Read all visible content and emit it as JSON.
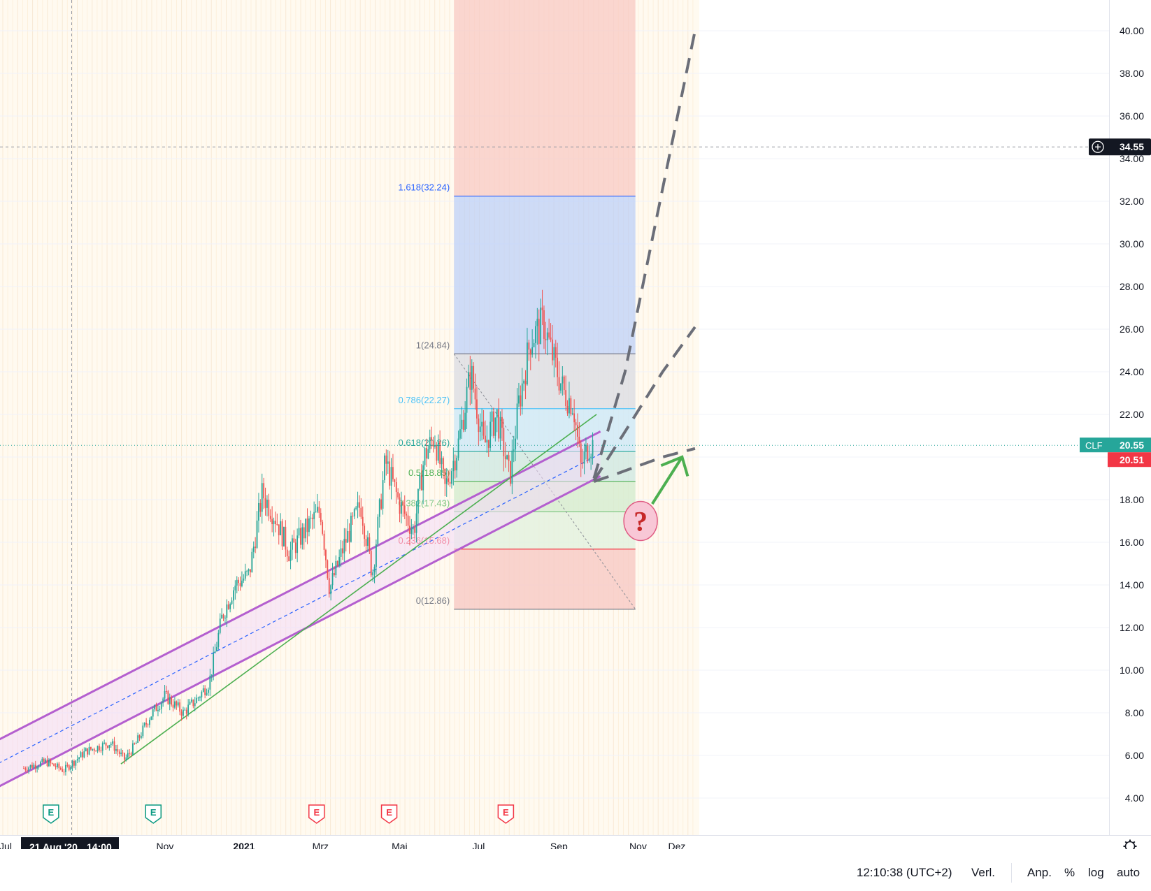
{
  "chart_data": {
    "type": "candlestick",
    "symbol": "CLF",
    "last_price": "20.55",
    "prev_price": "20.51",
    "crosshair_price": "34.55",
    "crosshair_date": "21 Aug '20",
    "crosshair_time": "14:00",
    "y_ticks": [
      "40.00",
      "38.00",
      "36.00",
      "34.00",
      "32.00",
      "30.00",
      "28.00",
      "26.00",
      "24.00",
      "22.00",
      "20.00",
      "18.00",
      "16.00",
      "14.00",
      "12.00",
      "10.00",
      "8.00",
      "6.00",
      "4.00"
    ],
    "x_ticks": [
      "Jul",
      "Nov",
      "2021",
      "Mrz",
      "Mai",
      "Jul",
      "Sep",
      "Nov",
      "Dez"
    ],
    "ylim": [
      2.5,
      41.5
    ],
    "price_path": [
      {
        "x": "2020-07-15",
        "y": 5.4
      },
      {
        "x": "2020-08-01",
        "y": 5.7
      },
      {
        "x": "2020-08-15",
        "y": 5.3
      },
      {
        "x": "2020-09-01",
        "y": 6.2
      },
      {
        "x": "2020-09-20",
        "y": 6.6
      },
      {
        "x": "2020-10-01",
        "y": 5.8
      },
      {
        "x": "2020-10-10",
        "y": 6.6
      },
      {
        "x": "2020-10-20",
        "y": 7.8
      },
      {
        "x": "2020-11-01",
        "y": 8.8
      },
      {
        "x": "2020-11-15",
        "y": 8.0
      },
      {
        "x": "2020-11-25",
        "y": 8.6
      },
      {
        "x": "2020-12-05",
        "y": 9.4
      },
      {
        "x": "2020-12-15",
        "y": 12.5
      },
      {
        "x": "2020-12-25",
        "y": 14.0
      },
      {
        "x": "2021-01-05",
        "y": 14.5
      },
      {
        "x": "2021-01-15",
        "y": 18.3
      },
      {
        "x": "2021-01-25",
        "y": 17.2
      },
      {
        "x": "2021-02-05",
        "y": 15.5
      },
      {
        "x": "2021-02-20",
        "y": 16.8
      },
      {
        "x": "2021-03-01",
        "y": 17.5
      },
      {
        "x": "2021-03-08",
        "y": 13.8
      },
      {
        "x": "2021-03-20",
        "y": 16.0
      },
      {
        "x": "2021-04-01",
        "y": 17.8
      },
      {
        "x": "2021-04-10",
        "y": 14.5
      },
      {
        "x": "2021-04-20",
        "y": 19.8
      },
      {
        "x": "2021-05-01",
        "y": 17.8
      },
      {
        "x": "2021-05-12",
        "y": 16.5
      },
      {
        "x": "2021-05-20",
        "y": 20.0
      },
      {
        "x": "2021-05-28",
        "y": 21.0
      },
      {
        "x": "2021-06-05",
        "y": 18.5
      },
      {
        "x": "2021-06-15",
        "y": 20.5
      },
      {
        "x": "2021-06-25",
        "y": 24.0
      },
      {
        "x": "2021-07-05",
        "y": 20.5
      },
      {
        "x": "2021-07-15",
        "y": 22.0
      },
      {
        "x": "2021-07-25",
        "y": 19.0
      },
      {
        "x": "2021-08-01",
        "y": 22.5
      },
      {
        "x": "2021-08-10",
        "y": 25.5
      },
      {
        "x": "2021-08-20",
        "y": 26.3
      },
      {
        "x": "2021-08-28",
        "y": 24.5
      },
      {
        "x": "2021-09-05",
        "y": 23.0
      },
      {
        "x": "2021-09-12",
        "y": 22.5
      },
      {
        "x": "2021-09-18",
        "y": 19.5
      },
      {
        "x": "2021-09-24",
        "y": 20.6
      },
      {
        "x": "2021-09-28",
        "y": 20.55
      }
    ],
    "fibonacci": [
      {
        "label": "1.618(32.24)",
        "value": 32.24,
        "color": "#2962ff"
      },
      {
        "label": "1(24.84)",
        "value": 24.84,
        "color": "#787b86"
      },
      {
        "label": "0.786(22.27)",
        "value": 22.27,
        "color": "#4fc3f7"
      },
      {
        "label": "0.618(20.26)",
        "value": 20.26,
        "color": "#26a69a"
      },
      {
        "label": "0.5(18.85)",
        "value": 18.85,
        "color": "#4caf50"
      },
      {
        "label": "0.382(17.43)",
        "value": 17.43,
        "color": "#81c784"
      },
      {
        "label": "0.236(15.68)",
        "value": 15.68,
        "color": "#f23645"
      },
      {
        "label": "0(12.86)",
        "value": 12.86,
        "color": "#787b86"
      }
    ],
    "earnings_markers": [
      {
        "x": "2020-08-05",
        "kind": "E",
        "color": "#089981"
      },
      {
        "x": "2020-10-23",
        "kind": "E",
        "color": "#089981"
      },
      {
        "x": "2021-02-26",
        "kind": "E",
        "color": "#f23645"
      },
      {
        "x": "2021-04-23",
        "kind": "E",
        "color": "#f23645"
      },
      {
        "x": "2021-07-22",
        "kind": "E",
        "color": "#f23645"
      }
    ],
    "annotation": "?",
    "colors": {
      "up": "#26a69a",
      "down": "#ef5350",
      "channel": "#b45fcf",
      "trend": "#4caf50",
      "scenario": "#6b6e78"
    }
  },
  "status_bar": {
    "time": "12:10:38 (UTC+2)",
    "adjust": "Verl.",
    "anp": "Anp.",
    "percent": "%",
    "log": "log",
    "auto": "auto"
  },
  "icons": {
    "settings": "gear-icon",
    "crosshair_add": "plus-circle-icon"
  }
}
